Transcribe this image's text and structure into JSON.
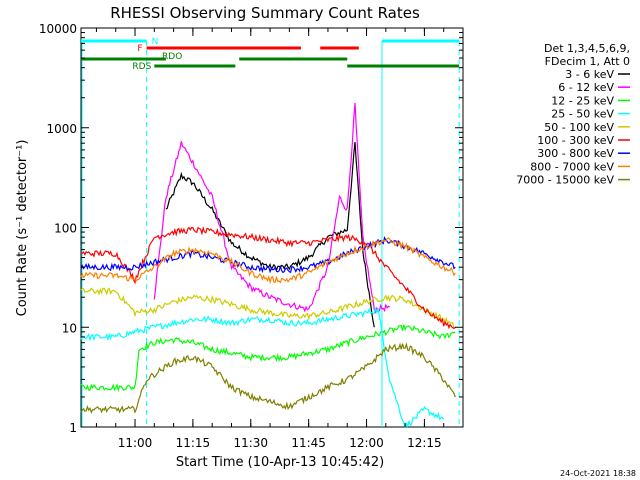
{
  "chart_data": {
    "type": "line",
    "title": "RHESSI Observing Summary Count Rates",
    "xlabel": "Start Time (10-Apr-13 10:45:42)",
    "ylabel": "Count Rate (s⁻¹ detector⁻¹)",
    "yscale": "log",
    "ylim": [
      1,
      10000
    ],
    "xlim": [
      "10:46",
      "12:25"
    ],
    "x_ticks": [
      "11:00",
      "11:15",
      "11:30",
      "11:45",
      "12:00",
      "12:15"
    ],
    "y_ticks": [
      "1",
      "10",
      "100",
      "1000",
      "10000"
    ],
    "grid": false,
    "legend_position": "right",
    "legend_header": [
      "Det 1,3,4,5,6,9,",
      "FDecim 1, Att 0"
    ],
    "flags": {
      "N": {
        "label": "N",
        "color": "#00ffff"
      },
      "F": {
        "label": "F",
        "color": "#ff0000"
      },
      "RDO": {
        "label": "RDO",
        "color": "#008000"
      },
      "RDS": {
        "label": "RDS",
        "color": "#008000"
      }
    },
    "series": [
      {
        "name": "3 - 6 keV",
        "color": "#000000",
        "points": [
          [
            "11:05",
            null
          ],
          [
            "11:08",
            150
          ],
          [
            "11:12",
            330
          ],
          [
            "11:15",
            280
          ],
          [
            "11:20",
            150
          ],
          [
            "11:25",
            70
          ],
          [
            "11:30",
            50
          ],
          [
            "11:35",
            40
          ],
          [
            "11:40",
            40
          ],
          [
            "11:45",
            50
          ],
          [
            "11:50",
            80
          ],
          [
            "11:55",
            95
          ],
          [
            "11:57",
            700
          ],
          [
            "11:59",
            60
          ],
          [
            "12:02",
            10
          ]
        ]
      },
      {
        "name": "6 - 12 keV",
        "color": "#ff00ff",
        "points": [
          [
            "11:05",
            20
          ],
          [
            "11:08",
            200
          ],
          [
            "11:12",
            700
          ],
          [
            "11:15",
            450
          ],
          [
            "11:20",
            200
          ],
          [
            "11:25",
            40
          ],
          [
            "11:30",
            25
          ],
          [
            "11:35",
            20
          ],
          [
            "11:40",
            17
          ],
          [
            "11:45",
            15
          ],
          [
            "11:50",
            40
          ],
          [
            "11:53",
            200
          ],
          [
            "11:55",
            150
          ],
          [
            "11:57",
            1700
          ],
          [
            "11:59",
            80
          ],
          [
            "12:02",
            15
          ],
          [
            "12:06",
            16
          ]
        ]
      },
      {
        "name": "12 - 25 keV",
        "color": "#00ff00",
        "points": [
          [
            "10:46",
            2.5
          ],
          [
            "11:00",
            2.5
          ],
          [
            "11:01",
            6
          ],
          [
            "11:05",
            7
          ],
          [
            "11:10",
            7.5
          ],
          [
            "11:15",
            7
          ],
          [
            "11:20",
            6
          ],
          [
            "11:25",
            5.5
          ],
          [
            "11:30",
            5
          ],
          [
            "11:35",
            5
          ],
          [
            "11:40",
            5
          ],
          [
            "11:45",
            5.5
          ],
          [
            "11:50",
            6
          ],
          [
            "11:55",
            7
          ],
          [
            "12:00",
            8
          ],
          [
            "12:05",
            9
          ],
          [
            "12:10",
            10
          ],
          [
            "12:15",
            9
          ],
          [
            "12:20",
            8
          ],
          [
            "12:23",
            9
          ]
        ]
      },
      {
        "name": "25 - 50 keV",
        "color": "#00ffff",
        "points": [
          [
            "10:46",
            8
          ],
          [
            "10:55",
            8
          ],
          [
            "11:00",
            9
          ],
          [
            "11:05",
            10
          ],
          [
            "11:10",
            11
          ],
          [
            "11:15",
            12
          ],
          [
            "11:20",
            12
          ],
          [
            "11:25",
            11
          ],
          [
            "11:30",
            12
          ],
          [
            "11:35",
            12
          ],
          [
            "11:40",
            11
          ],
          [
            "11:45",
            11
          ],
          [
            "11:50",
            12
          ],
          [
            "11:55",
            13
          ],
          [
            "12:00",
            14
          ],
          [
            "12:03",
            15
          ],
          [
            "12:06",
            3
          ],
          [
            "12:10",
            1
          ],
          [
            "12:15",
            1.5
          ],
          [
            "12:20",
            1.2
          ]
        ]
      },
      {
        "name": "50 - 100 keV",
        "color": "#cccc00",
        "points": [
          [
            "10:46",
            23
          ],
          [
            "10:55",
            23
          ],
          [
            "11:00",
            14
          ],
          [
            "11:05",
            15
          ],
          [
            "11:10",
            18
          ],
          [
            "11:15",
            20
          ],
          [
            "11:20",
            19
          ],
          [
            "11:25",
            17
          ],
          [
            "11:30",
            15
          ],
          [
            "11:35",
            14
          ],
          [
            "11:40",
            13
          ],
          [
            "11:45",
            13
          ],
          [
            "11:50",
            14
          ],
          [
            "11:55",
            16
          ],
          [
            "12:00",
            18
          ],
          [
            "12:05",
            20
          ],
          [
            "12:10",
            19
          ],
          [
            "12:15",
            15
          ],
          [
            "12:20",
            12
          ],
          [
            "12:23",
            10
          ]
        ]
      },
      {
        "name": "100 - 300 keV",
        "color": "#ff0000",
        "points": [
          [
            "10:46",
            55
          ],
          [
            "10:55",
            55
          ],
          [
            "11:00",
            30
          ],
          [
            "11:05",
            80
          ],
          [
            "11:10",
            90
          ],
          [
            "11:15",
            95
          ],
          [
            "11:20",
            90
          ],
          [
            "11:25",
            85
          ],
          [
            "11:30",
            80
          ],
          [
            "11:35",
            75
          ],
          [
            "11:40",
            70
          ],
          [
            "11:45",
            70
          ],
          [
            "11:50",
            75
          ],
          [
            "11:55",
            80
          ],
          [
            "12:00",
            70
          ],
          [
            "12:05",
            40
          ],
          [
            "12:10",
            25
          ],
          [
            "12:15",
            15
          ],
          [
            "12:20",
            11
          ],
          [
            "12:23",
            10
          ]
        ]
      },
      {
        "name": "300 - 800 keV",
        "color": "#0000ff",
        "points": [
          [
            "10:46",
            40
          ],
          [
            "10:55",
            40
          ],
          [
            "11:00",
            40
          ],
          [
            "11:05",
            45
          ],
          [
            "11:10",
            50
          ],
          [
            "11:15",
            55
          ],
          [
            "11:20",
            50
          ],
          [
            "11:25",
            45
          ],
          [
            "11:30",
            40
          ],
          [
            "11:35",
            38
          ],
          [
            "11:40",
            38
          ],
          [
            "11:45",
            40
          ],
          [
            "11:50",
            45
          ],
          [
            "11:55",
            55
          ],
          [
            "12:00",
            65
          ],
          [
            "12:05",
            75
          ],
          [
            "12:10",
            65
          ],
          [
            "12:15",
            55
          ],
          [
            "12:20",
            45
          ],
          [
            "12:23",
            40
          ]
        ]
      },
      {
        "name": "800 - 7000 keV",
        "color": "#ff8000",
        "points": [
          [
            "10:46",
            33
          ],
          [
            "10:55",
            33
          ],
          [
            "11:00",
            30
          ],
          [
            "11:05",
            40
          ],
          [
            "11:10",
            55
          ],
          [
            "11:15",
            60
          ],
          [
            "11:20",
            55
          ],
          [
            "11:25",
            45
          ],
          [
            "11:30",
            35
          ],
          [
            "11:35",
            30
          ],
          [
            "11:40",
            30
          ],
          [
            "11:45",
            35
          ],
          [
            "11:50",
            45
          ],
          [
            "11:55",
            55
          ],
          [
            "12:00",
            65
          ],
          [
            "12:05",
            75
          ],
          [
            "12:10",
            65
          ],
          [
            "12:15",
            50
          ],
          [
            "12:20",
            40
          ],
          [
            "12:23",
            35
          ]
        ]
      },
      {
        "name": "7000 - 15000 keV",
        "color": "#808000",
        "points": [
          [
            "10:46",
            1.5
          ],
          [
            "11:00",
            1.5
          ],
          [
            "11:03",
            3
          ],
          [
            "11:10",
            4.5
          ],
          [
            "11:15",
            5
          ],
          [
            "11:20",
            4
          ],
          [
            "11:25",
            2.5
          ],
          [
            "11:30",
            2
          ],
          [
            "11:40",
            1.6
          ],
          [
            "11:45",
            2
          ],
          [
            "11:50",
            2.5
          ],
          [
            "11:55",
            3
          ],
          [
            "12:00",
            4
          ],
          [
            "12:05",
            6
          ],
          [
            "12:10",
            6.5
          ],
          [
            "12:15",
            5
          ],
          [
            "12:20",
            3
          ],
          [
            "12:23",
            2
          ]
        ]
      }
    ],
    "footer_date": "24-Oct-2021 18:38"
  }
}
